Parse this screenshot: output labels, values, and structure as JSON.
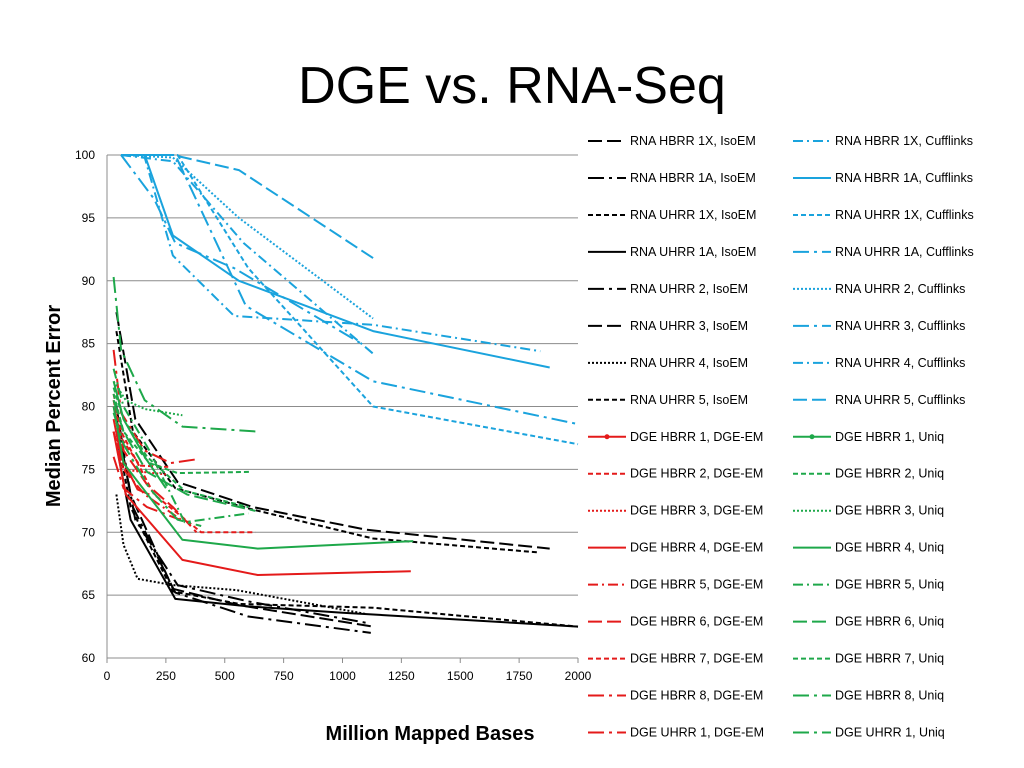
{
  "slide": {
    "title": "DGE vs. RNA-Seq"
  },
  "chart_data": {
    "type": "line",
    "title": "DGE vs. RNA-Seq",
    "xlabel": "Million Mapped Bases",
    "ylabel": "Median Percent Error",
    "xlim": [
      0,
      2000
    ],
    "ylim": [
      60,
      100
    ],
    "xticks": [
      0,
      250,
      500,
      750,
      1000,
      1250,
      1500,
      1750,
      2000
    ],
    "yticks": [
      60,
      65,
      70,
      75,
      80,
      85,
      90,
      95,
      100
    ],
    "grid": "horizontal",
    "legend": "right",
    "colors": {
      "black": "#000000",
      "blue": "#1aa3dd",
      "red": "#e41a1a",
      "green": "#1ea84a"
    },
    "series": [
      {
        "name": "RNA HBRR 1X, IsoEM",
        "color": "black",
        "dash": "longdash",
        "points": [
          [
            40,
            80
          ],
          [
            100,
            73
          ],
          [
            280,
            65.5
          ],
          [
            560,
            64.2
          ],
          [
            1130,
            62.5
          ]
        ]
      },
      {
        "name": "RNA HBRR 1A, IsoEM",
        "color": "black",
        "dash": "longdashdot",
        "points": [
          [
            40,
            79
          ],
          [
            110,
            72
          ],
          [
            290,
            65.2
          ],
          [
            600,
            63.3
          ],
          [
            1120,
            62
          ]
        ]
      },
      {
        "name": "RNA UHRR 1X, IsoEM",
        "color": "black",
        "dash": "dash",
        "points": [
          [
            40,
            78
          ],
          [
            100,
            72
          ],
          [
            280,
            65.3
          ],
          [
            560,
            64.3
          ],
          [
            1130,
            64
          ],
          [
            2000,
            62.5
          ]
        ]
      },
      {
        "name": "RNA UHRR 1A, IsoEM",
        "color": "black",
        "dash": "solid",
        "points": [
          [
            40,
            77
          ],
          [
            100,
            71
          ],
          [
            290,
            64.7
          ],
          [
            600,
            64.1
          ],
          [
            1000,
            63.6
          ],
          [
            2000,
            62.5
          ]
        ]
      },
      {
        "name": "RNA UHRR 2, IsoEM",
        "color": "black",
        "dash": "longdashdot",
        "points": [
          [
            40,
            79
          ],
          [
            120,
            71
          ],
          [
            300,
            65.8
          ],
          [
            600,
            64.5
          ],
          [
            1100,
            62.8
          ]
        ]
      },
      {
        "name": "RNA UHRR 3, IsoEM",
        "color": "black",
        "dash": "longdash",
        "points": [
          [
            40,
            87.5
          ],
          [
            120,
            79
          ],
          [
            300,
            74
          ],
          [
            620,
            72
          ],
          [
            1100,
            70.2
          ],
          [
            1880,
            68.7
          ]
        ]
      },
      {
        "name": "RNA UHRR 4, IsoEM",
        "color": "black",
        "dash": "dot",
        "points": [
          [
            40,
            73
          ],
          [
            70,
            69
          ],
          [
            130,
            66.3
          ],
          [
            280,
            65.8
          ],
          [
            550,
            65.4
          ],
          [
            1100,
            63.5
          ]
        ]
      },
      {
        "name": "RNA UHRR 5, IsoEM",
        "color": "black",
        "dash": "dash",
        "points": [
          [
            40,
            86
          ],
          [
            110,
            78
          ],
          [
            290,
            73.5
          ],
          [
            620,
            71.8
          ],
          [
            1130,
            69.5
          ],
          [
            1830,
            68.4
          ]
        ]
      },
      {
        "name": "RNA HBRR 1X, Cufflinks",
        "color": "blue",
        "dash": "dashdot",
        "points": [
          [
            60,
            100
          ],
          [
            160,
            99.8
          ],
          [
            280,
            92
          ],
          [
            540,
            87.2
          ],
          [
            1130,
            86.5
          ],
          [
            1840,
            84.4
          ]
        ]
      },
      {
        "name": "RNA HBRR 1A, Cufflinks",
        "color": "blue",
        "dash": "solid",
        "points": [
          [
            60,
            100
          ],
          [
            160,
            100
          ],
          [
            280,
            93.6
          ],
          [
            560,
            90
          ],
          [
            1130,
            86
          ],
          [
            1880,
            83.1
          ]
        ]
      },
      {
        "name": "RNA UHRR 1X, Cufflinks",
        "color": "blue",
        "dash": "dash",
        "points": [
          [
            60,
            100
          ],
          [
            300,
            100
          ],
          [
            600,
            91
          ],
          [
            1130,
            80
          ],
          [
            2000,
            77
          ]
        ]
      },
      {
        "name": "RNA UHRR 1A, Cufflinks",
        "color": "blue",
        "dash": "longdashdot",
        "points": [
          [
            60,
            100
          ],
          [
            290,
            100
          ],
          [
            590,
            88
          ],
          [
            1130,
            82
          ],
          [
            2000,
            78.6
          ]
        ]
      },
      {
        "name": "RNA UHRR 2, Cufflinks",
        "color": "blue",
        "dash": "dot",
        "points": [
          [
            60,
            100
          ],
          [
            280,
            99.8
          ],
          [
            560,
            95
          ],
          [
            1130,
            87
          ]
        ]
      },
      {
        "name": "RNA UHRR 3, Cufflinks",
        "color": "blue",
        "dash": "longdashdot",
        "points": [
          [
            60,
            100
          ],
          [
            200,
            96.5
          ],
          [
            290,
            93
          ],
          [
            540,
            91
          ],
          [
            1080,
            85
          ]
        ]
      },
      {
        "name": "RNA UHRR 4, Cufflinks",
        "color": "blue",
        "dash": "dashdot",
        "points": [
          [
            60,
            100
          ],
          [
            280,
            99.5
          ],
          [
            580,
            93
          ],
          [
            1130,
            84.2
          ]
        ]
      },
      {
        "name": "RNA UHRR 5, Cufflinks",
        "color": "blue",
        "dash": "longdash",
        "points": [
          [
            60,
            100
          ],
          [
            280,
            100
          ],
          [
            560,
            98.8
          ],
          [
            1130,
            91.8
          ]
        ]
      },
      {
        "name": "DGE HBRR 1, DGE-EM",
        "color": "red",
        "dash": "solid",
        "points": [
          [
            28,
            79
          ],
          [
            60,
            76
          ],
          [
            130,
            73.4
          ],
          [
            180,
            73
          ]
        ]
      },
      {
        "name": "DGE HBRR 2, DGE-EM",
        "color": "red",
        "dash": "dash",
        "points": [
          [
            28,
            80.5
          ],
          [
            60,
            77.5
          ],
          [
            140,
            75.3
          ],
          [
            260,
            75.2
          ]
        ]
      },
      {
        "name": "DGE HBRR 3, DGE-EM",
        "color": "red",
        "dash": "dot",
        "points": [
          [
            28,
            78
          ],
          [
            70,
            75
          ],
          [
            150,
            74.8
          ],
          [
            250,
            74.6
          ]
        ]
      },
      {
        "name": "DGE HBRR 4, DGE-EM",
        "color": "red",
        "dash": "solid",
        "points": [
          [
            28,
            78
          ],
          [
            80,
            73
          ],
          [
            320,
            67.8
          ],
          [
            640,
            66.6
          ],
          [
            1290,
            66.9
          ]
        ]
      },
      {
        "name": "DGE HBRR 5, DGE-EM",
        "color": "red",
        "dash": "dashdot",
        "points": [
          [
            28,
            78
          ],
          [
            70,
            75
          ],
          [
            160,
            73
          ],
          [
            330,
            70.8
          ]
        ]
      },
      {
        "name": "DGE HBRR 6, DGE-EM",
        "color": "red",
        "dash": "longdash",
        "points": [
          [
            28,
            80
          ],
          [
            70,
            76.5
          ],
          [
            170,
            73.8
          ],
          [
            280,
            72
          ],
          [
            380,
            70
          ]
        ]
      },
      {
        "name": "DGE HBRR 7, DGE-EM",
        "color": "red",
        "dash": "dash",
        "points": [
          [
            28,
            81
          ],
          [
            60,
            78
          ],
          [
            200,
            73
          ],
          [
            400,
            70
          ],
          [
            630,
            70
          ]
        ]
      },
      {
        "name": "DGE HBRR 8, DGE-EM",
        "color": "red",
        "dash": "longdashdot",
        "points": [
          [
            28,
            84.5
          ],
          [
            60,
            79.5
          ],
          [
            160,
            76.5
          ],
          [
            270,
            75.5
          ],
          [
            380,
            75.8
          ]
        ]
      },
      {
        "name": "DGE UHRR 1, DGE-EM",
        "color": "red",
        "dash": "longdashdot",
        "points": [
          [
            28,
            76
          ],
          [
            70,
            73.5
          ],
          [
            170,
            72
          ],
          [
            310,
            71
          ]
        ]
      },
      {
        "name": "DGE HBRR 1, Uniq",
        "color": "green",
        "dash": "solid",
        "points": [
          [
            28,
            82
          ],
          [
            70,
            79
          ],
          [
            160,
            76
          ],
          [
            250,
            73.5
          ]
        ]
      },
      {
        "name": "DGE HBRR 2, Uniq",
        "color": "green",
        "dash": "dash",
        "points": [
          [
            28,
            81
          ],
          [
            70,
            78
          ],
          [
            180,
            75.5
          ],
          [
            300,
            74.7
          ],
          [
            610,
            74.8
          ]
        ]
      },
      {
        "name": "DGE HBRR 3, Uniq",
        "color": "green",
        "dash": "dot",
        "points": [
          [
            28,
            82
          ],
          [
            80,
            80.5
          ],
          [
            160,
            79.8
          ],
          [
            320,
            79.3
          ]
        ]
      },
      {
        "name": "DGE HBRR 4, Uniq",
        "color": "green",
        "dash": "solid",
        "points": [
          [
            28,
            80
          ],
          [
            70,
            75.5
          ],
          [
            320,
            69.4
          ],
          [
            640,
            68.7
          ],
          [
            1300,
            69.3
          ]
        ]
      },
      {
        "name": "DGE HBRR 5, Uniq",
        "color": "green",
        "dash": "dashdot",
        "points": [
          [
            28,
            83
          ],
          [
            70,
            80
          ],
          [
            180,
            76.5
          ],
          [
            330,
            70.8
          ],
          [
            600,
            71.5
          ]
        ]
      },
      {
        "name": "DGE HBRR 6, Uniq",
        "color": "green",
        "dash": "longdash",
        "points": [
          [
            28,
            80.5
          ],
          [
            70,
            78
          ],
          [
            170,
            74.8
          ],
          [
            340,
            73
          ],
          [
            630,
            71.7
          ]
        ]
      },
      {
        "name": "DGE HBRR 7, Uniq",
        "color": "green",
        "dash": "dash",
        "points": [
          [
            28,
            81.5
          ],
          [
            70,
            79
          ],
          [
            170,
            76
          ],
          [
            330,
            73.3
          ],
          [
            600,
            72
          ]
        ]
      },
      {
        "name": "DGE HBRR 8, Uniq",
        "color": "green",
        "dash": "longdashdot",
        "points": [
          [
            28,
            79.5
          ],
          [
            70,
            77
          ],
          [
            180,
            73.5
          ],
          [
            300,
            71
          ],
          [
            400,
            70.5
          ]
        ]
      },
      {
        "name": "DGE UHRR 1, Uniq",
        "color": "green",
        "dash": "longdashdot",
        "points": [
          [
            28,
            90.3
          ],
          [
            60,
            84.5
          ],
          [
            160,
            80.5
          ],
          [
            320,
            78.4
          ],
          [
            640,
            78
          ]
        ]
      }
    ]
  }
}
